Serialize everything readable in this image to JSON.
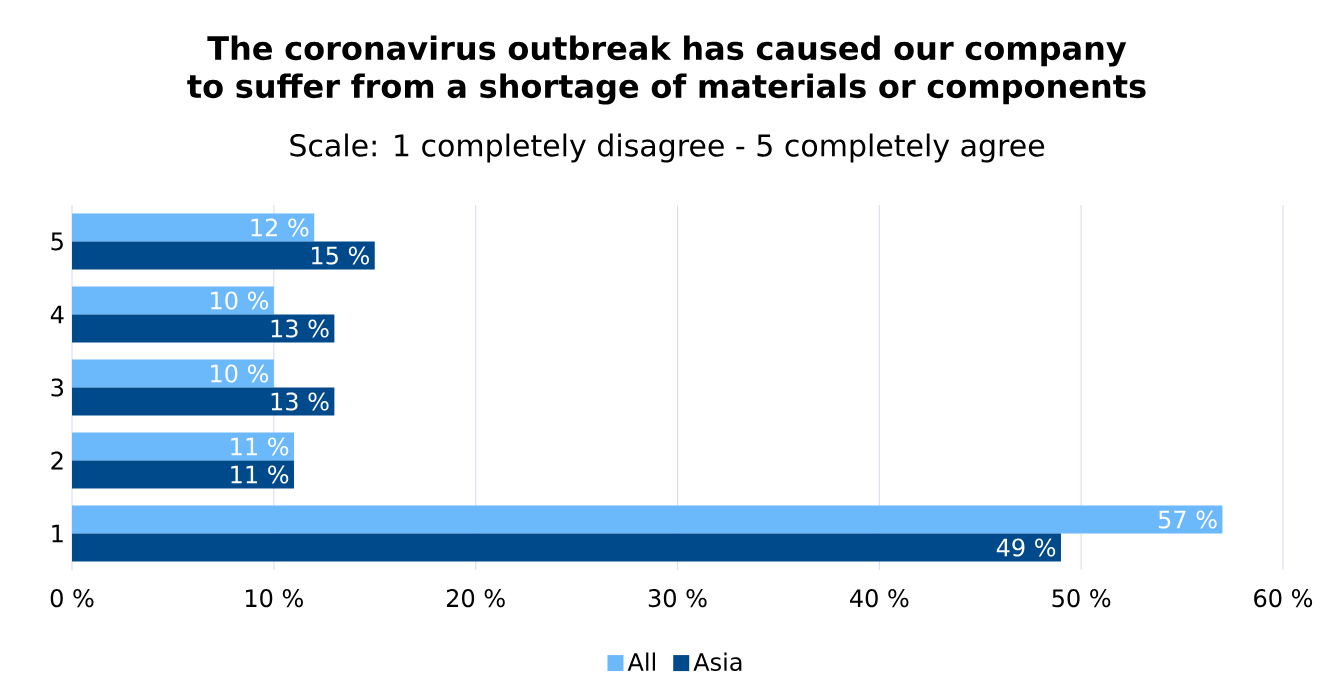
{
  "chart_data": {
    "type": "bar",
    "orientation": "horizontal",
    "title": "The coronavirus outbreak has caused our company to suffer from a shortage of materials or components",
    "subtitle": "Scale: 1 completely disagree - 5 completely agree",
    "categories": [
      "5",
      "4",
      "3",
      "2",
      "1"
    ],
    "series": [
      {
        "name": "All",
        "color": "#6bb8fb",
        "values": [
          12,
          10,
          10,
          11,
          57
        ],
        "value_labels": [
          "12 %",
          "10 %",
          "10 %",
          "11 %",
          "57 %"
        ]
      },
      {
        "name": "Asia",
        "color": "#004a8c",
        "values": [
          15,
          13,
          13,
          11,
          49
        ],
        "value_labels": [
          "15 %",
          "13 %",
          "13 %",
          "11 %",
          "49 %"
        ]
      }
    ],
    "xlim": [
      0,
      60
    ],
    "xticks": [
      {
        "value": 0,
        "label": "0 %"
      },
      {
        "value": 10,
        "label": "10 %"
      },
      {
        "value": 20,
        "label": "20 %"
      },
      {
        "value": 30,
        "label": "30 %"
      },
      {
        "value": 40,
        "label": "40 %"
      },
      {
        "value": 50,
        "label": "50 %"
      },
      {
        "value": 60,
        "label": "60 %"
      }
    ],
    "grid": "x",
    "legend": "bottom"
  }
}
